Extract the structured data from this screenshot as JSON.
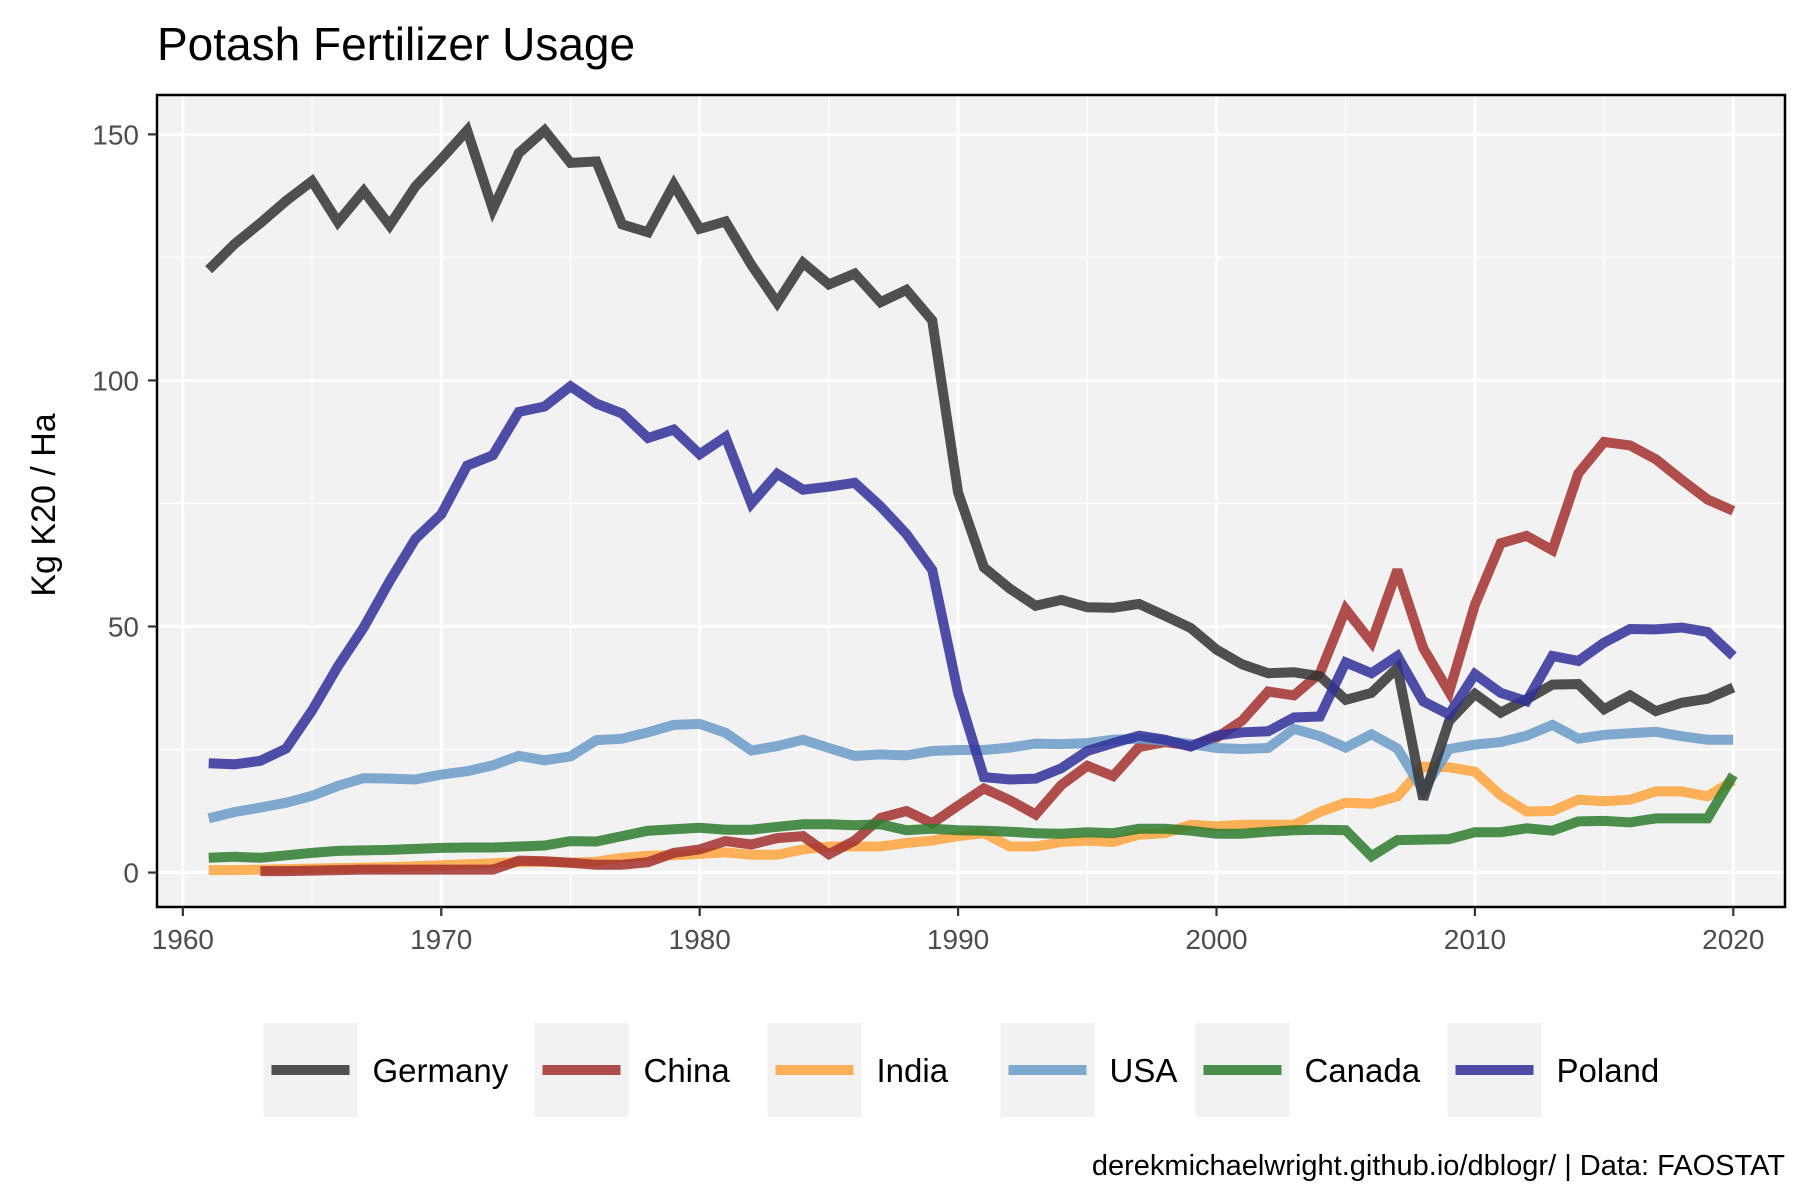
{
  "chart_data": {
    "type": "line",
    "title": "Potash Fertilizer Usage",
    "xlabel": "",
    "ylabel": "Kg K20 / Ha",
    "caption": "derekmichaelwright.github.io/dblogr/ | Data: FAOSTAT",
    "xlim": [
      1959,
      2022
    ],
    "ylim": [
      -7,
      158
    ],
    "xticks": [
      1960,
      1970,
      1980,
      1990,
      2000,
      2010,
      2020
    ],
    "yticks": [
      0,
      50,
      100,
      150
    ],
    "grid": true,
    "legend_position": "bottom",
    "series": [
      {
        "name": "India",
        "color": "#ffa53d",
        "x": [
          1961,
          1962,
          1963,
          1964,
          1965,
          1966,
          1967,
          1968,
          1969,
          1970,
          1971,
          1972,
          1973,
          1974,
          1975,
          1976,
          1977,
          1978,
          1979,
          1980,
          1981,
          1982,
          1983,
          1984,
          1985,
          1986,
          1987,
          1988,
          1989,
          1990,
          1991,
          1992,
          1993,
          1994,
          1995,
          1996,
          1997,
          1998,
          1999,
          2000,
          2001,
          2002,
          2003,
          2004,
          2005,
          2006,
          2007,
          2008,
          2009,
          2010,
          2011,
          2012,
          2013,
          2014,
          2015,
          2016,
          2017,
          2018,
          2019,
          2020
        ],
        "y": [
          0.5,
          0.5,
          0.6,
          0.7,
          0.8,
          0.9,
          1.0,
          1.1,
          1.3,
          1.5,
          1.7,
          1.9,
          2.1,
          2.2,
          2.0,
          2.2,
          3.0,
          3.4,
          3.5,
          3.8,
          4.1,
          3.6,
          3.6,
          4.7,
          5.3,
          5.3,
          5.3,
          6.0,
          6.5,
          7.4,
          8.0,
          5.3,
          5.3,
          6.2,
          6.5,
          6.2,
          7.7,
          8.0,
          9.7,
          9.4,
          9.7,
          9.7,
          9.7,
          12.3,
          14.2,
          14.0,
          15.5,
          21.5,
          21.4,
          20.5,
          15.7,
          12.4,
          12.5,
          14.8,
          14.5,
          14.8,
          16.5,
          16.5,
          15.5,
          18.7
        ]
      },
      {
        "name": "China",
        "color": "#a2302e",
        "x": [
          1963,
          1964,
          1965,
          1966,
          1967,
          1968,
          1969,
          1970,
          1971,
          1972,
          1973,
          1974,
          1975,
          1976,
          1977,
          1978,
          1979,
          1980,
          1981,
          1982,
          1983,
          1984,
          1985,
          1986,
          1987,
          1988,
          1989,
          1990,
          1991,
          1992,
          1993,
          1994,
          1995,
          1996,
          1997,
          1998,
          1999,
          2000,
          2001,
          2002,
          2003,
          2004,
          2005,
          2006,
          2007,
          2008,
          2009,
          2010,
          2011,
          2012,
          2013,
          2014,
          2015,
          2016,
          2017,
          2018,
          2019,
          2020
        ],
        "y": [
          0.3,
          0.3,
          0.4,
          0.5,
          0.6,
          0.6,
          0.6,
          0.6,
          0.6,
          0.6,
          2.4,
          2.3,
          2.0,
          1.6,
          1.6,
          2.1,
          4.0,
          4.7,
          6.4,
          5.7,
          7.0,
          7.4,
          3.7,
          6.5,
          11.1,
          12.5,
          10.0,
          13.6,
          17.1,
          14.7,
          11.8,
          17.8,
          21.7,
          19.6,
          25.5,
          26.5,
          25.8,
          27.4,
          30.9,
          36.8,
          36.0,
          40.5,
          53.5,
          46.8,
          61.5,
          45.6,
          36.7,
          54.4,
          66.9,
          68.4,
          65.5,
          81.1,
          87.5,
          86.8,
          84.0,
          79.8,
          75.8,
          73.5
        ]
      },
      {
        "name": "USA",
        "color": "#6b9bc9",
        "x": [
          1961,
          1962,
          1963,
          1964,
          1965,
          1966,
          1967,
          1968,
          1969,
          1970,
          1971,
          1972,
          1973,
          1974,
          1975,
          1976,
          1977,
          1978,
          1979,
          1980,
          1981,
          1982,
          1983,
          1984,
          1985,
          1986,
          1987,
          1988,
          1989,
          1990,
          1991,
          1992,
          1993,
          1994,
          1995,
          1996,
          1997,
          1998,
          1999,
          2000,
          2001,
          2002,
          2003,
          2004,
          2005,
          2006,
          2007,
          2008,
          2009,
          2010,
          2011,
          2012,
          2013,
          2014,
          2015,
          2016,
          2017,
          2018,
          2019,
          2020
        ],
        "y": [
          11.0,
          12.3,
          13.2,
          14.2,
          15.6,
          17.6,
          19.2,
          19.1,
          18.9,
          19.9,
          20.6,
          21.8,
          23.7,
          22.8,
          23.6,
          26.9,
          27.2,
          28.5,
          30.0,
          30.2,
          28.4,
          24.8,
          25.7,
          27.0,
          25.3,
          23.7,
          24.0,
          23.8,
          24.7,
          24.9,
          24.9,
          25.4,
          26.2,
          26.1,
          26.3,
          27.0,
          27.2,
          26.8,
          26.1,
          25.3,
          25.1,
          25.3,
          29.2,
          27.7,
          25.4,
          28.1,
          25.2,
          16.7,
          25.1,
          26.0,
          26.5,
          27.8,
          30.0,
          27.2,
          28.0,
          28.3,
          28.6,
          27.7,
          27.0,
          27.0
        ]
      },
      {
        "name": "Germany",
        "color": "#333333",
        "x": [
          1961,
          1962,
          1963,
          1964,
          1965,
          1966,
          1967,
          1968,
          1969,
          1970,
          1971,
          1972,
          1973,
          1974,
          1975,
          1976,
          1977,
          1978,
          1979,
          1980,
          1981,
          1982,
          1983,
          1984,
          1985,
          1986,
          1987,
          1988,
          1989,
          1990,
          1991,
          1992,
          1993,
          1994,
          1995,
          1996,
          1997,
          1998,
          1999,
          2000,
          2001,
          2002,
          2003,
          2004,
          2005,
          2006,
          2007,
          2008,
          2009,
          2010,
          2011,
          2012,
          2013,
          2014,
          2015,
          2016,
          2017,
          2018,
          2019,
          2020
        ],
        "y": [
          122.5,
          127.7,
          132.0,
          136.5,
          140.5,
          132.2,
          138.5,
          131.5,
          139.4,
          145.0,
          150.8,
          134.8,
          146.2,
          150.8,
          144.2,
          144.5,
          131.7,
          130.1,
          139.8,
          130.8,
          132.3,
          123.5,
          115.8,
          123.9,
          119.5,
          121.7,
          115.9,
          118.4,
          112.2,
          77.2,
          62.0,
          57.7,
          54.2,
          55.4,
          53.9,
          53.8,
          54.6,
          52.2,
          49.7,
          45.3,
          42.3,
          40.5,
          40.7,
          39.9,
          35.1,
          36.5,
          41.6,
          14.9,
          30.8,
          36.3,
          32.5,
          35.2,
          38.2,
          38.3,
          33.2,
          36.0,
          32.8,
          34.5,
          35.3,
          37.6
        ]
      },
      {
        "name": "Poland",
        "color": "#30309a",
        "x": [
          1961,
          1962,
          1963,
          1964,
          1965,
          1966,
          1967,
          1968,
          1969,
          1970,
          1971,
          1972,
          1973,
          1974,
          1975,
          1976,
          1977,
          1978,
          1979,
          1980,
          1981,
          1982,
          1983,
          1984,
          1985,
          1986,
          1987,
          1988,
          1989,
          1990,
          1991,
          1992,
          1993,
          1994,
          1995,
          1996,
          1997,
          1998,
          1999,
          2000,
          2001,
          2002,
          2003,
          2004,
          2005,
          2006,
          2007,
          2008,
          2009,
          2010,
          2011,
          2012,
          2013,
          2014,
          2015,
          2016,
          2017,
          2018,
          2019,
          2020
        ],
        "y": [
          22.2,
          22.0,
          22.7,
          25.2,
          32.9,
          41.9,
          49.8,
          59.2,
          67.8,
          72.8,
          82.7,
          84.8,
          93.6,
          94.7,
          98.8,
          95.3,
          93.3,
          88.3,
          90.0,
          85.0,
          88.5,
          75.0,
          81.0,
          77.8,
          78.4,
          79.2,
          74.4,
          68.8,
          61.5,
          36.5,
          19.4,
          18.9,
          19.1,
          21.2,
          24.7,
          26.3,
          27.8,
          27.0,
          25.6,
          27.8,
          28.5,
          28.7,
          31.5,
          31.7,
          42.7,
          40.5,
          44.0,
          34.8,
          32.1,
          40.3,
          36.5,
          34.8,
          44.0,
          43.0,
          46.7,
          49.5,
          49.4,
          49.8,
          48.9,
          44.0
        ]
      },
      {
        "name": "Canada",
        "color": "#2e7d2e",
        "x": [
          1961,
          1962,
          1963,
          1964,
          1965,
          1966,
          1967,
          1968,
          1969,
          1970,
          1971,
          1972,
          1973,
          1974,
          1975,
          1976,
          1977,
          1978,
          1979,
          1980,
          1981,
          1982,
          1983,
          1984,
          1985,
          1986,
          1987,
          1988,
          1989,
          1990,
          1991,
          1992,
          1993,
          1994,
          1995,
          1996,
          1997,
          1998,
          1999,
          2000,
          2001,
          2002,
          2003,
          2004,
          2005,
          2006,
          2007,
          2008,
          2009,
          2010,
          2011,
          2012,
          2013,
          2014,
          2015,
          2016,
          2017,
          2018,
          2019,
          2020
        ],
        "y": [
          3.0,
          3.2,
          3.0,
          3.5,
          4.0,
          4.4,
          4.5,
          4.6,
          4.8,
          5.0,
          5.1,
          5.1,
          5.3,
          5.5,
          6.4,
          6.3,
          7.4,
          8.5,
          8.8,
          9.1,
          8.7,
          8.7,
          9.3,
          9.8,
          9.8,
          9.6,
          9.8,
          8.6,
          8.9,
          8.6,
          8.5,
          8.3,
          8.0,
          7.9,
          8.2,
          8.0,
          8.9,
          8.9,
          8.5,
          7.9,
          7.9,
          8.3,
          8.6,
          8.7,
          8.6,
          3.3,
          6.6,
          6.7,
          6.8,
          8.2,
          8.2,
          9.0,
          8.5,
          10.4,
          10.5,
          10.2,
          11.0,
          11.0,
          11.0,
          19.8
        ]
      }
    ],
    "legend": [
      "Germany",
      "China",
      "India",
      "USA",
      "Canada",
      "Poland"
    ]
  }
}
